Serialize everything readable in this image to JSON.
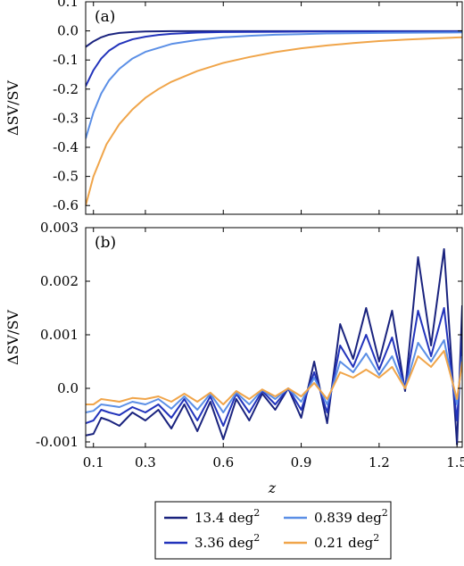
{
  "chart_data": [
    {
      "type": "line",
      "panel_label": "(a)",
      "xlabel": "",
      "ylabel": "ΔSV/SV",
      "xlim": [
        0.07,
        1.52
      ],
      "ylim": [
        -0.63,
        0.1
      ],
      "xticks": [
        0.1,
        0.3,
        0.6,
        0.9,
        1.2,
        1.5
      ],
      "xtick_labels_visible": false,
      "yticks": [
        0.1,
        0.0,
        -0.1,
        -0.2,
        -0.3,
        -0.4,
        -0.5,
        -0.6
      ],
      "ytick_labels": [
        "0.1",
        "0.0",
        "-0.1",
        "-0.2",
        "-0.3",
        "-0.4",
        "-0.5",
        "-0.6"
      ],
      "grid": false,
      "series": [
        {
          "name": "13.4 deg²",
          "color": "#1a237e",
          "x": [
            0.07,
            0.1,
            0.13,
            0.16,
            0.2,
            0.25,
            0.3,
            0.4,
            0.5,
            0.7,
            1.0,
            1.3,
            1.52
          ],
          "y": [
            -0.055,
            -0.036,
            -0.022,
            -0.013,
            -0.007,
            -0.004,
            -0.002,
            -0.001,
            -0.001,
            -0.001,
            -0.001,
            -0.001,
            -0.001
          ]
        },
        {
          "name": "3.36 deg²",
          "color": "#2233bb",
          "x": [
            0.07,
            0.1,
            0.13,
            0.16,
            0.2,
            0.25,
            0.3,
            0.35,
            0.4,
            0.5,
            0.6,
            0.8,
            1.0,
            1.2,
            1.52
          ],
          "y": [
            -0.19,
            -0.135,
            -0.095,
            -0.068,
            -0.045,
            -0.029,
            -0.02,
            -0.014,
            -0.01,
            -0.006,
            -0.004,
            -0.003,
            -0.002,
            -0.002,
            -0.002
          ]
        },
        {
          "name": "0.839 deg²",
          "color": "#5b8fe6",
          "x": [
            0.07,
            0.1,
            0.13,
            0.16,
            0.2,
            0.25,
            0.3,
            0.4,
            0.5,
            0.6,
            0.7,
            0.8,
            0.9,
            1.0,
            1.2,
            1.4,
            1.52
          ],
          "y": [
            -0.37,
            -0.28,
            -0.215,
            -0.17,
            -0.13,
            -0.095,
            -0.072,
            -0.045,
            -0.031,
            -0.022,
            -0.017,
            -0.013,
            -0.011,
            -0.009,
            -0.007,
            -0.006,
            -0.005
          ]
        },
        {
          "name": "0.21 deg²",
          "color": "#f0a54a",
          "x": [
            0.07,
            0.1,
            0.15,
            0.2,
            0.25,
            0.3,
            0.35,
            0.4,
            0.5,
            0.6,
            0.7,
            0.8,
            0.9,
            1.0,
            1.1,
            1.2,
            1.3,
            1.4,
            1.52
          ],
          "y": [
            -0.6,
            -0.5,
            -0.39,
            -0.32,
            -0.27,
            -0.23,
            -0.2,
            -0.175,
            -0.138,
            -0.11,
            -0.09,
            -0.073,
            -0.06,
            -0.05,
            -0.042,
            -0.035,
            -0.03,
            -0.026,
            -0.022
          ]
        }
      ]
    },
    {
      "type": "line",
      "panel_label": "(b)",
      "xlabel": "z",
      "ylabel": "ΔSV/SV",
      "xlim": [
        0.07,
        1.52
      ],
      "ylim": [
        -0.0011,
        0.003
      ],
      "xticks": [
        0.1,
        0.3,
        0.6,
        0.9,
        1.2,
        1.5
      ],
      "xtick_labels": [
        "0.1",
        "0.3",
        "0.6",
        "0.9",
        "1.2",
        "1.5"
      ],
      "yticks": [
        0.003,
        0.002,
        0.001,
        0.0,
        -0.001
      ],
      "ytick_labels": [
        "0.003",
        "0.002",
        "0.001",
        "0.0",
        "-0.001"
      ],
      "grid": false,
      "series": [
        {
          "name": "13.4 deg²",
          "color": "#1a237e",
          "x": [
            0.07,
            0.1,
            0.13,
            0.16,
            0.2,
            0.25,
            0.3,
            0.35,
            0.4,
            0.45,
            0.5,
            0.55,
            0.6,
            0.65,
            0.7,
            0.75,
            0.8,
            0.85,
            0.9,
            0.95,
            1.0,
            1.05,
            1.1,
            1.15,
            1.2,
            1.25,
            1.3,
            1.35,
            1.4,
            1.45,
            1.5,
            1.52
          ],
          "y": [
            -0.00088,
            -0.00085,
            -0.00055,
            -0.0006,
            -0.0007,
            -0.00045,
            -0.0006,
            -0.0004,
            -0.00075,
            -0.0003,
            -0.0008,
            -0.00025,
            -0.00095,
            -0.0002,
            -0.0006,
            -0.0001,
            -0.0004,
            0.0,
            -0.00055,
            0.0005,
            -0.00065,
            0.0012,
            0.00055,
            0.0015,
            0.0005,
            0.00145,
            -5e-05,
            0.00245,
            0.0008,
            0.0026,
            -0.00105,
            0.00155
          ]
        },
        {
          "name": "3.36 deg²",
          "color": "#2233bb",
          "x": [
            0.07,
            0.1,
            0.13,
            0.16,
            0.2,
            0.25,
            0.3,
            0.35,
            0.4,
            0.45,
            0.5,
            0.55,
            0.6,
            0.65,
            0.7,
            0.75,
            0.8,
            0.85,
            0.9,
            0.95,
            1.0,
            1.05,
            1.1,
            1.15,
            1.2,
            1.25,
            1.3,
            1.35,
            1.4,
            1.45,
            1.5,
            1.52
          ],
          "y": [
            -0.00065,
            -0.0006,
            -0.0004,
            -0.00045,
            -0.0005,
            -0.00035,
            -0.00045,
            -0.0003,
            -0.00055,
            -0.0002,
            -0.0006,
            -0.00015,
            -0.0007,
            -0.0001,
            -0.00045,
            -5e-05,
            -0.0003,
            0.0,
            -0.0004,
            0.0003,
            -0.00045,
            0.0008,
            0.0004,
            0.001,
            0.00035,
            0.00095,
            0.0,
            0.00145,
            0.0006,
            0.0015,
            -0.0006,
            0.0009
          ]
        },
        {
          "name": "0.839 deg²",
          "color": "#5b8fe6",
          "x": [
            0.07,
            0.1,
            0.13,
            0.16,
            0.2,
            0.25,
            0.3,
            0.35,
            0.4,
            0.45,
            0.5,
            0.55,
            0.6,
            0.65,
            0.7,
            0.75,
            0.8,
            0.85,
            0.9,
            0.95,
            1.0,
            1.05,
            1.1,
            1.15,
            1.2,
            1.25,
            1.3,
            1.35,
            1.4,
            1.45,
            1.5,
            1.52
          ],
          "y": [
            -0.00045,
            -0.00042,
            -0.0003,
            -0.00032,
            -0.00035,
            -0.00025,
            -0.0003,
            -0.0002,
            -0.00038,
            -0.00015,
            -0.0004,
            -0.0001,
            -0.00045,
            -8e-05,
            -0.0003,
            -3e-05,
            -0.0002,
            0.0,
            -0.00025,
            0.0002,
            -0.0003,
            0.0005,
            0.0003,
            0.00065,
            0.00025,
            0.0006,
            0.0,
            0.00085,
            0.0005,
            0.0009,
            -0.0003,
            0.0006
          ]
        },
        {
          "name": "0.21 deg²",
          "color": "#f0a54a",
          "x": [
            0.07,
            0.1,
            0.13,
            0.16,
            0.2,
            0.25,
            0.3,
            0.35,
            0.4,
            0.45,
            0.5,
            0.55,
            0.6,
            0.65,
            0.7,
            0.75,
            0.8,
            0.85,
            0.9,
            0.95,
            1.0,
            1.05,
            1.1,
            1.15,
            1.2,
            1.25,
            1.3,
            1.35,
            1.4,
            1.45,
            1.5,
            1.52
          ],
          "y": [
            -0.0003,
            -0.0003,
            -0.0002,
            -0.00022,
            -0.00025,
            -0.00018,
            -0.0002,
            -0.00015,
            -0.00025,
            -0.0001,
            -0.00025,
            -8e-05,
            -0.0003,
            -5e-05,
            -0.0002,
            -2e-05,
            -0.00015,
            0.0,
            -0.00015,
            0.0001,
            -0.0002,
            0.0003,
            0.0002,
            0.00035,
            0.0002,
            0.0004,
            0.0,
            0.0006,
            0.0004,
            0.0007,
            -0.0002,
            0.0005
          ]
        }
      ]
    }
  ],
  "legend": {
    "placement": "bottom-center",
    "entries": [
      {
        "label": "13.4 deg",
        "sup": "2",
        "color": "#1a237e"
      },
      {
        "label": "0.839 deg",
        "sup": "2",
        "color": "#5b8fe6"
      },
      {
        "label": "3.36 deg",
        "sup": "2",
        "color": "#2233bb"
      },
      {
        "label": "0.21 deg",
        "sup": "2",
        "color": "#f0a54a"
      }
    ]
  }
}
